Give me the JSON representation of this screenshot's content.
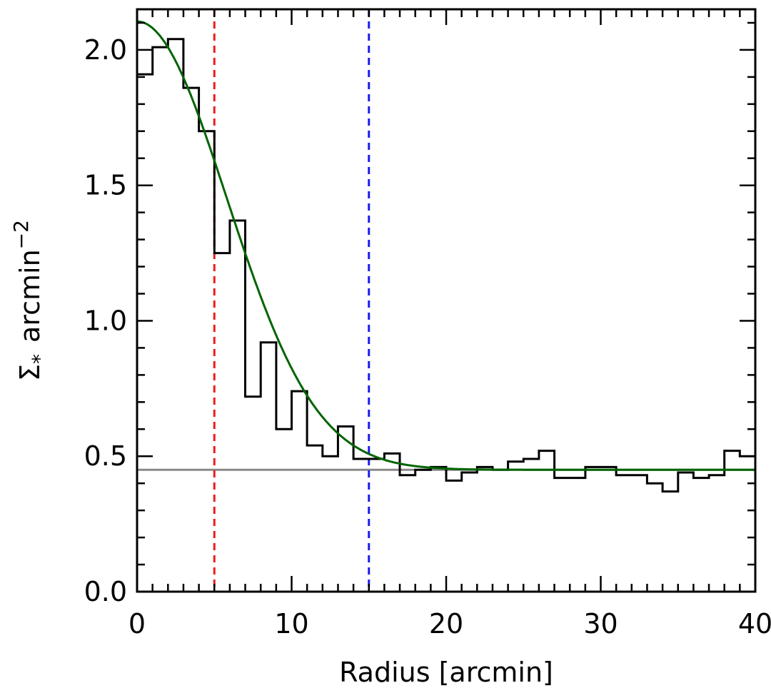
{
  "chart_data": {
    "type": "line",
    "title": "",
    "xlabel": "Radius [arcmin]",
    "ylabel": {
      "symbol": "Σ",
      "subscript": "*",
      "unit": "arcmin",
      "exponent": "−2"
    },
    "xlim": [
      0,
      40
    ],
    "ylim": [
      0,
      2.15
    ],
    "x_ticks": [
      0,
      10,
      20,
      30,
      40
    ],
    "x_tick_labels": [
      "0",
      "10",
      "20",
      "30",
      "40"
    ],
    "y_ticks": [
      0,
      0.5,
      1,
      1.5,
      2
    ],
    "y_tick_labels": [
      "0.0",
      "0.5",
      "1.0",
      "1.5",
      "2.0"
    ],
    "x_minor_step": 1,
    "y_minor_step": 0.1,
    "grid": false,
    "legend": "none",
    "series": [
      {
        "kind": "histogram",
        "color": "#000000",
        "bin_width": 1,
        "x_start": 0,
        "values": [
          1.91,
          2.01,
          2.04,
          1.86,
          1.7,
          1.25,
          1.37,
          0.72,
          0.92,
          0.6,
          0.74,
          0.54,
          0.5,
          0.61,
          0.49,
          0.49,
          0.51,
          0.43,
          0.45,
          0.46,
          0.41,
          0.44,
          0.46,
          0.45,
          0.48,
          0.49,
          0.52,
          0.42,
          0.42,
          0.46,
          0.46,
          0.43,
          0.43,
          0.4,
          0.37,
          0.44,
          0.42,
          0.43,
          0.52,
          0.5
        ]
      },
      {
        "kind": "gaussian-fit",
        "color": "#006400",
        "peak": 1.655,
        "sigma": 5.8,
        "background": 0.45
      },
      {
        "kind": "horizontal-line",
        "color": "#888888",
        "y": 0.45
      },
      {
        "kind": "vertical-dashed-line",
        "color": "#ee1c1c",
        "x": 5
      },
      {
        "kind": "vertical-dashed-line",
        "color": "#1c1cee",
        "x": 15
      }
    ]
  }
}
